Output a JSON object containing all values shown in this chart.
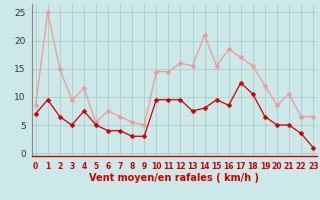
{
  "x": [
    0,
    1,
    2,
    3,
    4,
    5,
    6,
    7,
    8,
    9,
    10,
    11,
    12,
    13,
    14,
    15,
    16,
    17,
    18,
    19,
    20,
    21,
    22,
    23
  ],
  "wind_avg": [
    7,
    9.5,
    6.5,
    5,
    7.5,
    5,
    4,
    4,
    3,
    3,
    9.5,
    9.5,
    9.5,
    7.5,
    8,
    9.5,
    8.5,
    12.5,
    10.5,
    6.5,
    5,
    5,
    3.5,
    1
  ],
  "wind_gust": [
    8.5,
    25,
    15,
    9.5,
    11.5,
    5.5,
    7.5,
    6.5,
    5.5,
    5,
    14.5,
    14.5,
    16,
    15.5,
    21,
    15.5,
    18.5,
    17,
    15.5,
    12,
    8.5,
    10.5,
    6.5,
    6.5
  ],
  "bg_color": "#cce8e8",
  "grid_color": "#aacccc",
  "line_color_avg": "#cc0000",
  "line_color_gust": "#ee9999",
  "xlabel": "Vent moyen/en rafales ( km/h )",
  "yticks": [
    0,
    5,
    10,
    15,
    20,
    25
  ],
  "ylim": [
    -0.5,
    26.5
  ],
  "xlim": [
    -0.3,
    23.3
  ],
  "marker_size": 2.5,
  "linewidth": 0.9,
  "xlabel_fontsize": 7,
  "xtick_fontsize": 5.5,
  "ytick_fontsize": 6.5
}
